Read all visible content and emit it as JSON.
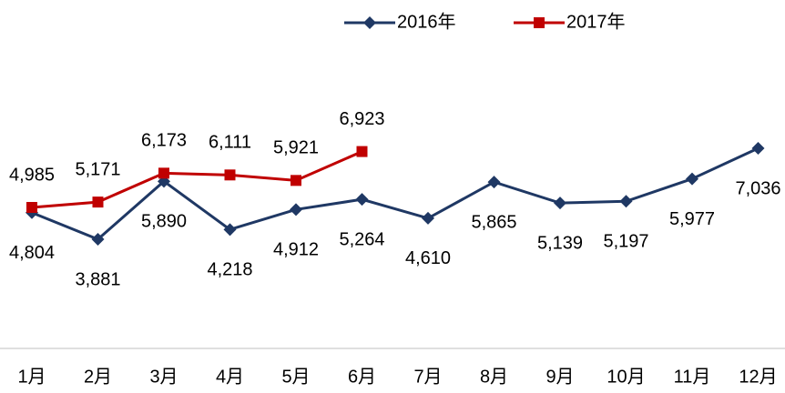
{
  "chart_data": {
    "type": "line",
    "categories": [
      "1月",
      "2月",
      "3月",
      "4月",
      "5月",
      "6月",
      "7月",
      "8月",
      "9月",
      "10月",
      "11月",
      "12月"
    ],
    "series": [
      {
        "name": "2016年",
        "color": "#1f3864",
        "marker": "diamond",
        "values": [
          4804,
          3881,
          5890,
          4218,
          4912,
          5264,
          4610,
          5865,
          5139,
          5197,
          5977,
          7036
        ],
        "value_labels": [
          "4,804",
          "3,881",
          "5,890",
          "4,218",
          "4,912",
          "5,264",
          "4,610",
          "5,865",
          "5,139",
          "5,197",
          "5,977",
          "7,036"
        ]
      },
      {
        "name": "2017年",
        "color": "#c00000",
        "marker": "square",
        "values": [
          4985,
          5171,
          6173,
          6111,
          5921,
          6923,
          null,
          null,
          null,
          null,
          null,
          null
        ],
        "value_labels": [
          "4,985",
          "5,171",
          "6,173",
          "6,111",
          "5,921",
          "6,923",
          null,
          null,
          null,
          null,
          null,
          null
        ]
      }
    ],
    "legend": "top"
  }
}
